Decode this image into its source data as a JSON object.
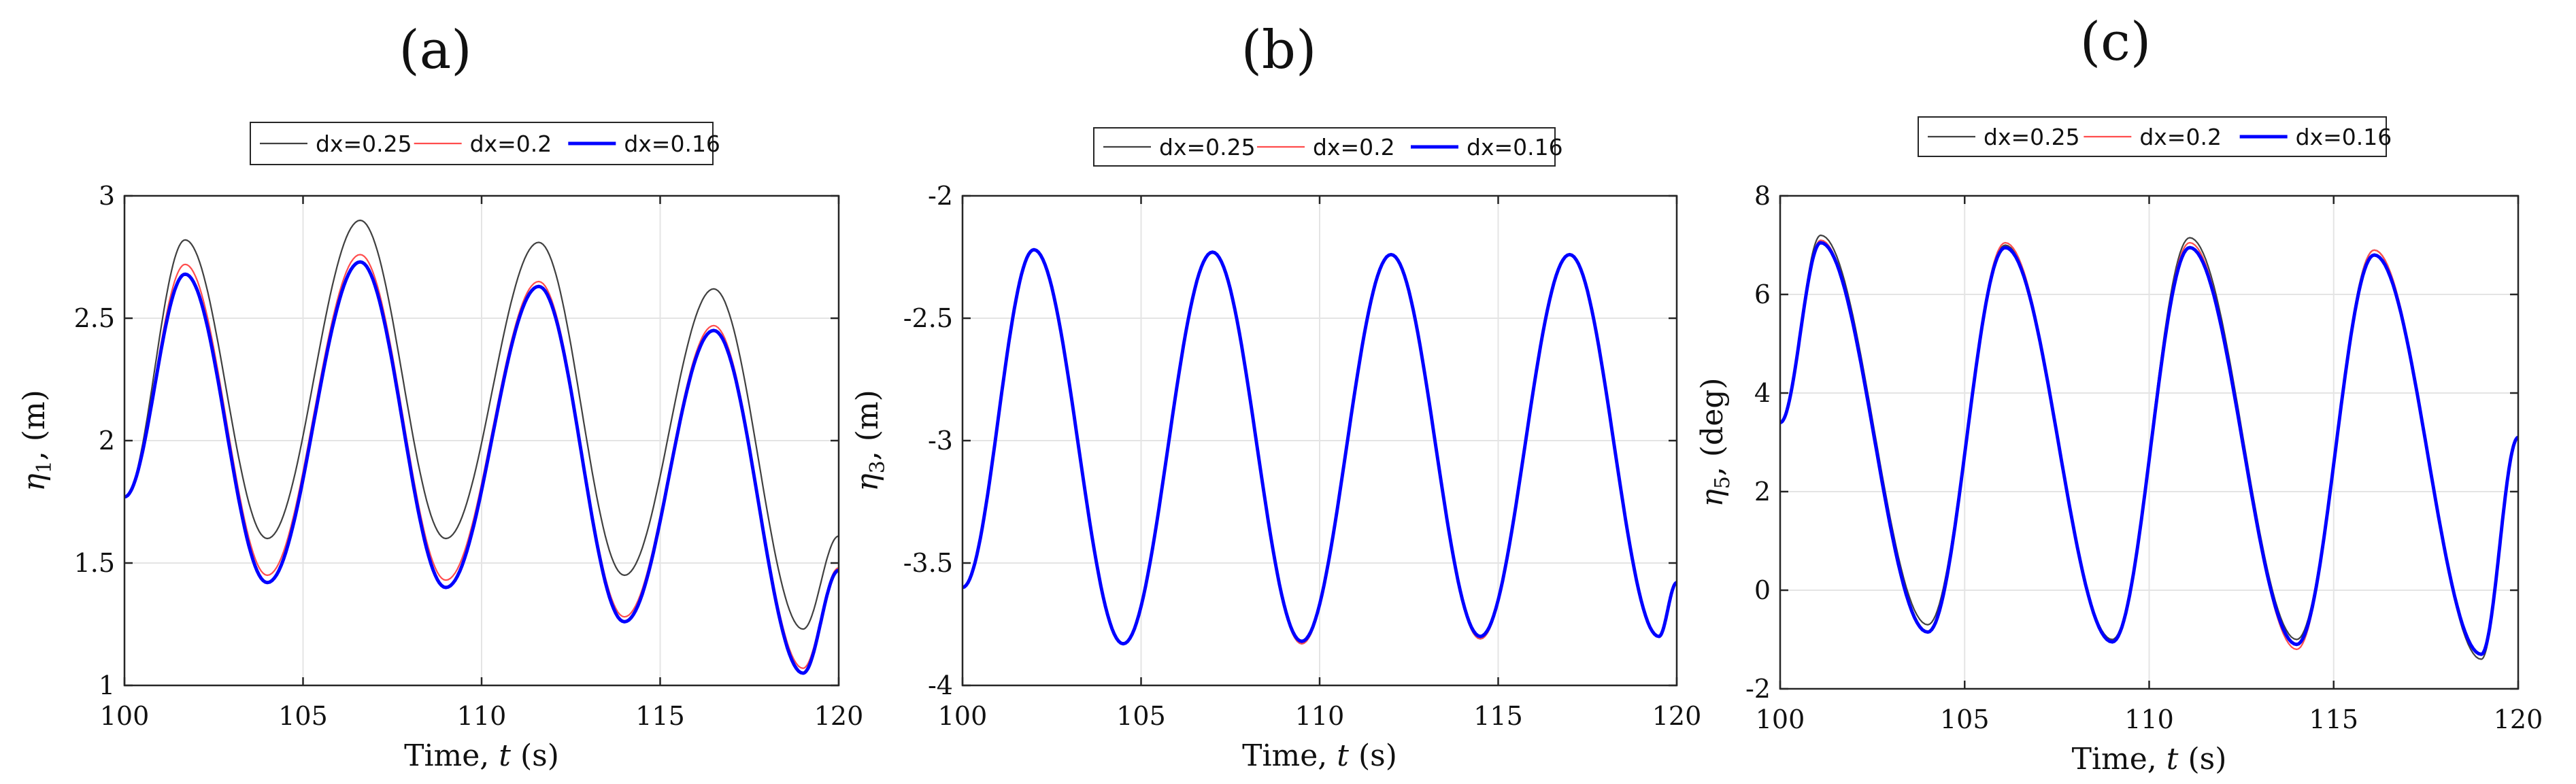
{
  "chart_data": [
    {
      "type": "line",
      "panel_label": "(a)",
      "xlabel_prefix": "Time, ",
      "xlabel_var": "t",
      "xlabel_unit": " (s)",
      "ylabel_sym": "η",
      "ylabel_sub": "1",
      "ylabel_unit": ", (m)",
      "xlim": [
        100,
        120
      ],
      "ylim": [
        1,
        3
      ],
      "xticks": [
        100,
        105,
        110,
        115,
        120
      ],
      "yticks": [
        1,
        1.5,
        2,
        2.5,
        3
      ],
      "xtick_labels": [
        "100",
        "105",
        "110",
        "115",
        "120"
      ],
      "ytick_labels": [
        "1",
        "1.5",
        "2",
        "2.5",
        "3"
      ],
      "grid": true,
      "legend": [
        "dx=0.25",
        "dx=0.2",
        "dx=0.16"
      ],
      "series": [
        {
          "name": "dx=0.25",
          "color": "#404040",
          "x": [
            100,
            101.7,
            104,
            106.6,
            109,
            111.6,
            114,
            116.5,
            119,
            120
          ],
          "y": [
            1.77,
            2.82,
            1.6,
            2.9,
            1.6,
            2.81,
            1.45,
            2.62,
            1.23,
            1.61
          ]
        },
        {
          "name": "dx=0.2",
          "color": "#ff4d4d",
          "x": [
            100,
            101.7,
            104,
            106.6,
            109,
            111.6,
            114,
            116.5,
            119,
            120
          ],
          "y": [
            1.77,
            2.72,
            1.45,
            2.76,
            1.43,
            2.65,
            1.28,
            2.47,
            1.07,
            1.48
          ]
        },
        {
          "name": "dx=0.16",
          "color": "#0000ff",
          "x": [
            100,
            101.7,
            104,
            106.6,
            109,
            111.6,
            114,
            116.5,
            119,
            120
          ],
          "y": [
            1.77,
            2.68,
            1.42,
            2.73,
            1.4,
            2.63,
            1.26,
            2.45,
            1.05,
            1.47
          ]
        }
      ]
    },
    {
      "type": "line",
      "panel_label": "(b)",
      "xlabel_prefix": "Time, ",
      "xlabel_var": "t",
      "xlabel_unit": " (s)",
      "ylabel_sym": "η",
      "ylabel_sub": "3",
      "ylabel_unit": ", (m)",
      "xlim": [
        100,
        120
      ],
      "ylim": [
        -4,
        -2
      ],
      "xticks": [
        100,
        105,
        110,
        115,
        120
      ],
      "yticks": [
        -4,
        -3.5,
        -3,
        -2.5,
        -2
      ],
      "xtick_labels": [
        "100",
        "105",
        "110",
        "115",
        "120"
      ],
      "ytick_labels": [
        "-4",
        "-3.5",
        "-3",
        "-2.5",
        "-2"
      ],
      "grid": true,
      "legend": [
        "dx=0.25",
        "dx=0.2",
        "dx=0.16"
      ],
      "series": [
        {
          "name": "dx=0.25",
          "color": "#404040",
          "x": [
            100,
            102,
            104.5,
            107,
            109.5,
            112,
            114.5,
            117,
            119.5,
            120
          ],
          "y": [
            -3.6,
            -2.22,
            -3.83,
            -2.23,
            -3.83,
            -2.24,
            -3.81,
            -2.24,
            -3.8,
            -3.58
          ]
        },
        {
          "name": "dx=0.2",
          "color": "#ff4d4d",
          "x": [
            100,
            102,
            104.5,
            107,
            109.5,
            112,
            114.5,
            117,
            119.5,
            120
          ],
          "y": [
            -3.6,
            -2.22,
            -3.83,
            -2.23,
            -3.83,
            -2.24,
            -3.81,
            -2.24,
            -3.8,
            -3.58
          ]
        },
        {
          "name": "dx=0.16",
          "color": "#0000ff",
          "x": [
            100,
            102,
            104.5,
            107,
            109.5,
            112,
            114.5,
            117,
            119.5,
            120
          ],
          "y": [
            -3.6,
            -2.22,
            -3.83,
            -2.23,
            -3.82,
            -2.24,
            -3.8,
            -2.24,
            -3.8,
            -3.58
          ]
        }
      ]
    },
    {
      "type": "line",
      "panel_label": "(c)",
      "xlabel_prefix": "Time, ",
      "xlabel_var": "t",
      "xlabel_unit": " (s)",
      "ylabel_sym": "η",
      "ylabel_sub": "5",
      "ylabel_unit": ", (deg)",
      "xlim": [
        100,
        120
      ],
      "ylim": [
        -2,
        8
      ],
      "xticks": [
        100,
        105,
        110,
        115,
        120
      ],
      "yticks": [
        -2,
        0,
        2,
        4,
        6,
        8
      ],
      "xtick_labels": [
        "100",
        "105",
        "110",
        "115",
        "120"
      ],
      "ytick_labels": [
        "-2",
        "0",
        "2",
        "4",
        "6",
        "8"
      ],
      "grid": true,
      "legend": [
        "dx=0.25",
        "dx=0.2",
        "dx=0.16"
      ],
      "series": [
        {
          "name": "dx=0.25",
          "color": "#404040",
          "x": [
            100,
            101.1,
            104,
            106.1,
            109,
            111.1,
            114,
            116.1,
            119,
            120
          ],
          "y": [
            3.4,
            7.2,
            -0.7,
            7.0,
            -1.0,
            7.15,
            -1.0,
            6.9,
            -1.4,
            3.1
          ]
        },
        {
          "name": "dx=0.2",
          "color": "#ff4d4d",
          "x": [
            100,
            101.1,
            104,
            106.1,
            109,
            111.1,
            114,
            116.1,
            119,
            120
          ],
          "y": [
            3.4,
            7.1,
            -0.85,
            7.05,
            -1.05,
            7.05,
            -1.2,
            6.9,
            -1.3,
            3.1
          ]
        },
        {
          "name": "dx=0.16",
          "color": "#0000ff",
          "x": [
            100,
            101.1,
            104,
            106.1,
            109,
            111.1,
            114,
            116.1,
            119,
            120
          ],
          "y": [
            3.4,
            7.05,
            -0.85,
            6.95,
            -1.05,
            6.95,
            -1.1,
            6.8,
            -1.3,
            3.1
          ]
        }
      ]
    }
  ]
}
